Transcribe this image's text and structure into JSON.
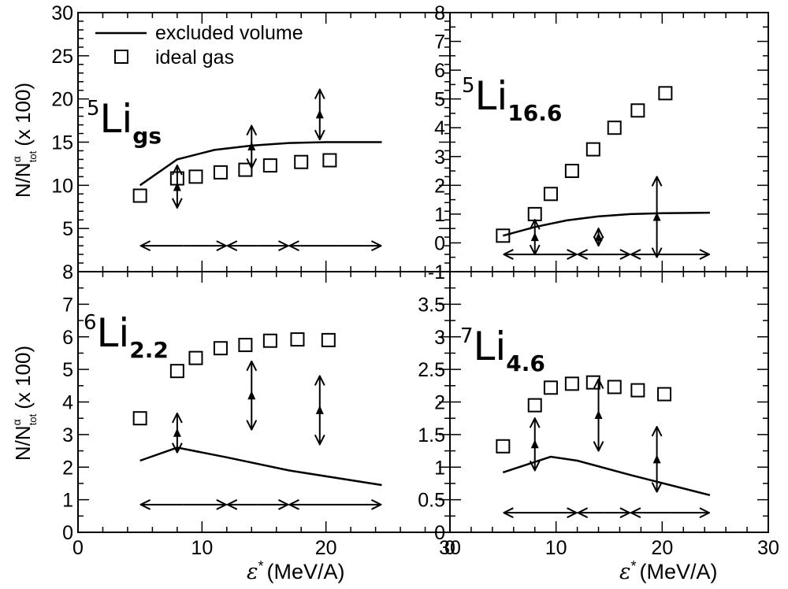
{
  "legend": {
    "line_label": "excluded volume",
    "marker_label": "ideal gas"
  },
  "axis_text": {
    "ylabel_main": "N/N",
    "ylabel_sup": "α",
    "ylabel_sub": "tot",
    "ylabel_scale": "(x 100)",
    "xlabel_symbol": "ε",
    "xlabel_sup": "*",
    "xlabel_unit": "(MeV/A)"
  },
  "chart_data": [
    {
      "type": "scatter",
      "panel": "top-left",
      "label": {
        "mass": "5",
        "element": "Li",
        "state": "gs"
      },
      "xlabel": "",
      "ylabel": "N/N^α_tot (x 100)",
      "xlim": [
        0,
        30
      ],
      "ylim": [
        0,
        30
      ],
      "yticks": [
        "5",
        "10",
        "15",
        "20",
        "25",
        "30"
      ],
      "xticks": [],
      "excluded_volume": {
        "x": [
          5,
          8,
          11,
          14,
          17,
          20,
          24.5
        ],
        "y": [
          10.0,
          13.0,
          14.1,
          14.6,
          14.9,
          15.0,
          15.0
        ]
      },
      "ideal_gas": {
        "x": [
          5,
          8,
          9.5,
          11.5,
          13.5,
          15.5,
          18,
          20.3
        ],
        "y": [
          8.8,
          10.8,
          11.0,
          11.5,
          11.8,
          12.3,
          12.7,
          12.9
        ]
      },
      "data_points": [
        {
          "x": 8,
          "y": 9.8,
          "up": 2.5,
          "down": 2.4
        },
        {
          "x": 14,
          "y": 14.5,
          "up": 2.4,
          "down": 2.5
        },
        {
          "x": 19.5,
          "y": 18.2,
          "up": 2.9,
          "down": 2.9
        }
      ],
      "bins": {
        "y": 3,
        "edges": [
          5,
          12,
          17,
          24.5
        ]
      },
      "legend": "top-left"
    },
    {
      "type": "scatter",
      "panel": "top-right",
      "label": {
        "mass": "5",
        "element": "Li",
        "state": "16.6"
      },
      "xlabel": "",
      "ylabel": "",
      "xlim": [
        0,
        30
      ],
      "ylim": [
        -1,
        8
      ],
      "yticks": [
        "-1",
        "0",
        "1",
        "2",
        "3",
        "4",
        "5",
        "6",
        "7",
        "8"
      ],
      "xticks": [],
      "excluded_volume": {
        "x": [
          5,
          8,
          11,
          14,
          17,
          20,
          24.5
        ],
        "y": [
          0.25,
          0.55,
          0.78,
          0.92,
          1.0,
          1.03,
          1.05
        ]
      },
      "ideal_gas": {
        "x": [
          5,
          8,
          9.5,
          11.5,
          13.5,
          15.5,
          17.7,
          20.3
        ],
        "y": [
          0.25,
          1.0,
          1.7,
          2.5,
          3.25,
          4.0,
          4.6,
          5.2
        ]
      },
      "data_points": [
        {
          "x": 8,
          "y": 0.2,
          "up": 0.6,
          "down": 0.6
        },
        {
          "x": 14,
          "y": 0.2,
          "up": 0.3,
          "down": 0.3
        },
        {
          "x": 19.5,
          "y": 0.9,
          "up": 1.4,
          "down": 1.4
        }
      ],
      "bins": {
        "y": -0.4,
        "edges": [
          5,
          12,
          17,
          24.5
        ]
      }
    },
    {
      "type": "scatter",
      "panel": "bottom-left",
      "label": {
        "mass": "6",
        "element": "Li",
        "state": "2.2"
      },
      "xlabel": "ε* (MeV/A)",
      "ylabel": "N/N^α_tot (x 100)",
      "xlim": [
        0,
        30
      ],
      "ylim": [
        0,
        8
      ],
      "yticks": [
        "0",
        "1",
        "2",
        "3",
        "4",
        "5",
        "6",
        "7",
        "8"
      ],
      "xticks": [
        "0",
        "10",
        "20",
        "30"
      ],
      "excluded_volume": {
        "x": [
          5,
          8,
          12,
          17,
          24.5
        ],
        "y": [
          2.2,
          2.6,
          2.3,
          1.9,
          1.45
        ]
      },
      "ideal_gas": {
        "x": [
          5,
          8,
          9.5,
          11.5,
          13.5,
          15.5,
          17.7,
          20.2
        ],
        "y": [
          3.5,
          4.95,
          5.35,
          5.65,
          5.75,
          5.88,
          5.92,
          5.9
        ]
      },
      "data_points": [
        {
          "x": 8,
          "y": 3.05,
          "up": 0.6,
          "down": 0.6
        },
        {
          "x": 14,
          "y": 4.2,
          "up": 1.05,
          "down": 1.05
        },
        {
          "x": 19.5,
          "y": 3.75,
          "up": 1.05,
          "down": 1.05
        }
      ],
      "bins": {
        "y": 0.85,
        "edges": [
          5,
          12,
          17,
          24.5
        ]
      }
    },
    {
      "type": "scatter",
      "panel": "bottom-right",
      "label": {
        "mass": "7",
        "element": "Li",
        "state": "4.6"
      },
      "xlabel": "ε* (MeV/A)",
      "ylabel": "",
      "xlim": [
        0,
        30
      ],
      "ylim": [
        0,
        4
      ],
      "yticks": [
        "0",
        "0.5",
        "1",
        "1.5",
        "2",
        "2.5",
        "3",
        "3.5"
      ],
      "xticks": [
        "0",
        "10",
        "20",
        "30"
      ],
      "excluded_volume": {
        "x": [
          5,
          9.5,
          12,
          17,
          24.5
        ],
        "y": [
          0.92,
          1.16,
          1.1,
          0.88,
          0.57
        ]
      },
      "ideal_gas": {
        "x": [
          5,
          8,
          9.5,
          11.5,
          13.5,
          15.5,
          17.7,
          20.2
        ],
        "y": [
          1.32,
          1.95,
          2.22,
          2.28,
          2.3,
          2.23,
          2.18,
          2.12
        ]
      },
      "data_points": [
        {
          "x": 8,
          "y": 1.35,
          "up": 0.4,
          "down": 0.4
        },
        {
          "x": 14,
          "y": 1.8,
          "up": 0.55,
          "down": 0.55
        },
        {
          "x": 19.5,
          "y": 1.12,
          "up": 0.5,
          "down": 0.5
        }
      ],
      "bins": {
        "y": 0.3,
        "edges": [
          5,
          12,
          17,
          24.5
        ]
      }
    }
  ]
}
